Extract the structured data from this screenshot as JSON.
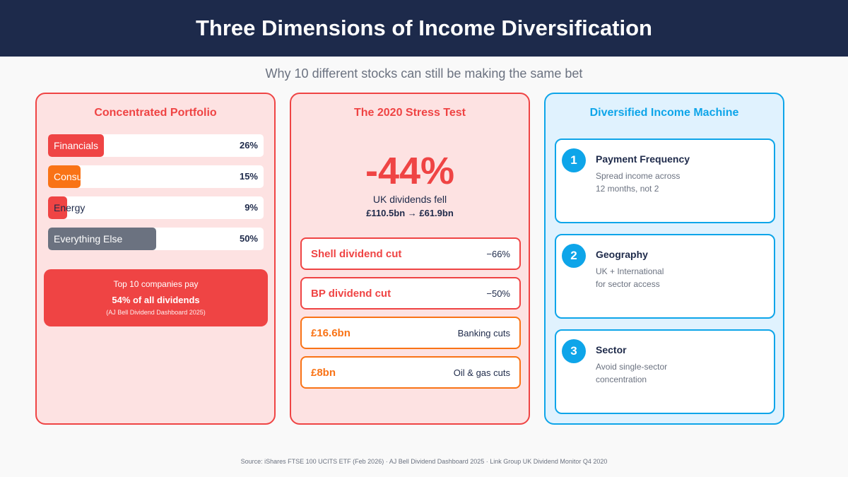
{
  "header": {
    "title": "Three Dimensions of Income Diversification",
    "subtitle": "Why 10 different stocks can still be making the same bet"
  },
  "concentrated": {
    "title": "Concentrated Portfolio",
    "bars": [
      {
        "label": "Financials",
        "value": "26%",
        "percent": 26,
        "color": "#ef4444",
        "label_color": "#ffffff"
      },
      {
        "label": "Consu",
        "value": "15%",
        "percent": 15,
        "color": "#f97316",
        "label_color": "#ffffff"
      },
      {
        "label": "Energy",
        "value": "9%",
        "percent": 9,
        "color": "#ef4444",
        "label_color": "#1e2a4a"
      },
      {
        "label": "Everything Else",
        "value": "50%",
        "percent": 50,
        "color": "#6b7280",
        "label_color": "#ffffff"
      }
    ],
    "callout": {
      "line1": "Top 10 companies pay",
      "line2": "54% of all dividends",
      "line3": "(AJ Bell Dividend Dashboard 2025)"
    }
  },
  "stress": {
    "title": "The 2020 Stress Test",
    "big": "-44%",
    "caption": "UK dividends fell",
    "change": "£110.5bn → £61.9bn",
    "rows": [
      {
        "left": "Shell dividend cut",
        "right": "−66%"
      },
      {
        "left": "BP dividend cut",
        "right": "−50%"
      },
      {
        "left": "£16.6bn",
        "right": "Banking cuts"
      },
      {
        "left": "£8bn",
        "right": "Oil & gas cuts"
      }
    ]
  },
  "diversified": {
    "title": "Diversified Income Machine",
    "items": [
      {
        "num": "1",
        "title": "Payment Frequency",
        "line1": "Spread income across",
        "line2": "12 months, not 2"
      },
      {
        "num": "2",
        "title": "Geography",
        "line1": "UK + International",
        "line2": "for sector access"
      },
      {
        "num": "3",
        "title": "Sector",
        "line1": "Avoid single-sector",
        "line2": "concentration"
      }
    ]
  },
  "source": "Source: iShares FTSE 100 UCITS ETF (Feb 2026) · AJ Bell Dividend Dashboard 2025 · Link Group UK Dividend Monitor Q4 2020",
  "colors": {
    "header": "#1d2a4b",
    "red": "#ef4444",
    "orange": "#f97316",
    "blue": "#0ea5e9",
    "gray": "#6b7280"
  }
}
